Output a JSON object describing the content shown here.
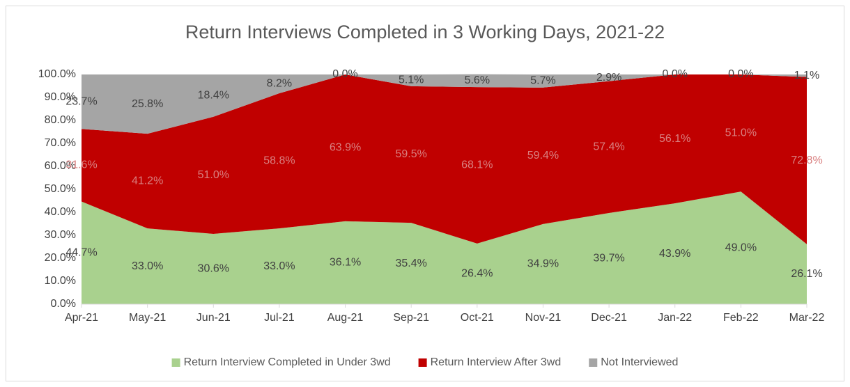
{
  "chart_data": {
    "type": "stacked_area",
    "title": "Return Interviews Completed in 3 Working Days, 2021-22",
    "categories": [
      "Apr-21",
      "May-21",
      "Jun-21",
      "Jul-21",
      "Aug-21",
      "Sep-21",
      "Oct-21",
      "Nov-21",
      "Dec-21",
      "Jan-22",
      "Feb-22",
      "Mar-22"
    ],
    "series": [
      {
        "name": "Return Interview Completed in Under 3wd",
        "color": "#a9d18e",
        "values": [
          44.7,
          33.0,
          30.6,
          33.0,
          36.1,
          35.4,
          26.4,
          34.9,
          39.7,
          43.9,
          49.0,
          26.1
        ],
        "value_labels": [
          "44.7%",
          "33.0%",
          "30.6%",
          "33.0%",
          "36.1%",
          "35.4%",
          "26.4%",
          "34.9%",
          "39.7%",
          "43.9%",
          "49.0%",
          "26.1%"
        ]
      },
      {
        "name": "Return Interview After 3wd",
        "color": "#c00000",
        "values": [
          31.6,
          41.2,
          51.0,
          58.8,
          63.9,
          59.5,
          68.1,
          59.4,
          57.4,
          56.1,
          51.0,
          72.8
        ],
        "value_labels": [
          "31.6%",
          "41.2%",
          "51.0%",
          "58.8%",
          "63.9%",
          "59.5%",
          "68.1%",
          "59.4%",
          "57.4%",
          "56.1%",
          "51.0%",
          "72.8%"
        ]
      },
      {
        "name": "Not Interviewed",
        "color": "#a5a5a5",
        "values": [
          23.7,
          25.8,
          18.4,
          8.2,
          0.0,
          5.1,
          5.6,
          5.7,
          2.9,
          0.0,
          0.0,
          1.1
        ],
        "value_labels": [
          "23.7%",
          "25.8%",
          "18.4%",
          "8.2%",
          "0.0%",
          "5.1%",
          "5.6%",
          "5.7%",
          "2.9%",
          "0.0%",
          "0.0%",
          "1.1%"
        ]
      }
    ],
    "ylim": [
      0,
      100
    ],
    "yticks": [
      {
        "value": 0,
        "label": "0.0%"
      },
      {
        "value": 10,
        "label": "10.0%"
      },
      {
        "value": 20,
        "label": "20.0%"
      },
      {
        "value": 30,
        "label": "30.0%"
      },
      {
        "value": 40,
        "label": "40.0%"
      },
      {
        "value": 50,
        "label": "50.0%"
      },
      {
        "value": 60,
        "label": "60.0%"
      },
      {
        "value": 70,
        "label": "70.0%"
      },
      {
        "value": 80,
        "label": "80.0%"
      },
      {
        "value": 90,
        "label": "90.0%"
      },
      {
        "value": 100,
        "label": "100.0%"
      }
    ],
    "legend": "bottom"
  }
}
